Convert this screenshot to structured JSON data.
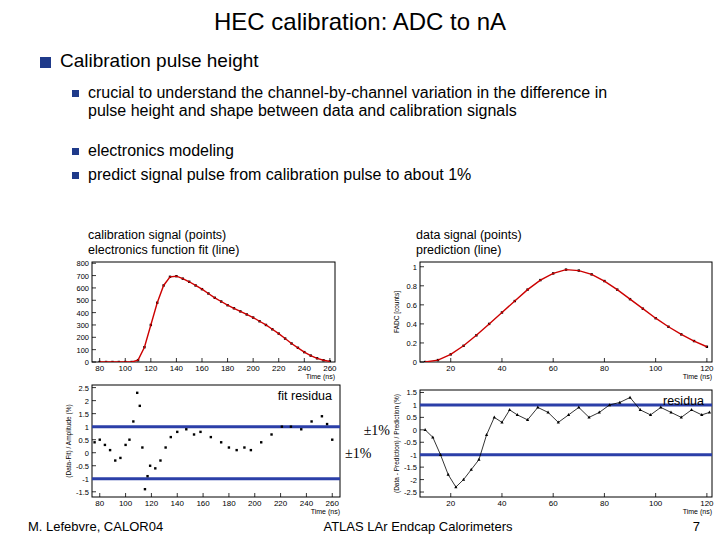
{
  "slide": {
    "title": "HEC calibration: ADC to nA",
    "bullet": "Calibration pulse height",
    "sub_bullets": [
      "crucial to understand the channel-by-channel variation in the difference in pulse height and shape between data and calibration signals",
      "electronics modeling",
      "predict signal pulse from calibration pulse to about 1%"
    ],
    "footer_left": "M. Lefebvre, CALOR04",
    "footer_center": "ATLAS LAr Endcap Calorimeters",
    "page_number": 7
  },
  "chart_data": [
    {
      "type": "line",
      "x_label": "Time (ns)",
      "legend": "top",
      "xlim": [
        74,
        264
      ],
      "xticks": [
        80,
        100,
        120,
        140,
        160,
        180,
        200,
        220,
        240,
        260
      ],
      "ylim": [
        0,
        810
      ],
      "yticks": [
        0,
        100,
        200,
        300,
        400,
        500,
        600,
        700,
        800
      ],
      "x": [
        80,
        85,
        90,
        95,
        100,
        105,
        110,
        115,
        120,
        125,
        130,
        135,
        140,
        145,
        150,
        155,
        160,
        165,
        170,
        175,
        180,
        185,
        190,
        195,
        200,
        205,
        210,
        215,
        220,
        225,
        230,
        235,
        240,
        245,
        250,
        255,
        260
      ],
      "series": [
        {
          "name": "calibration signal (points)",
          "type": "scatter",
          "marker": "square",
          "color": "#000000",
          "values": [
            0,
            0,
            0,
            0,
            0,
            0,
            15,
            120,
            300,
            480,
            620,
            690,
            695,
            675,
            650,
            620,
            590,
            555,
            520,
            490,
            460,
            435,
            410,
            385,
            360,
            330,
            300,
            265,
            230,
            190,
            150,
            115,
            80,
            52,
            30,
            14,
            5
          ]
        },
        {
          "name": "electronics function fit (line)",
          "type": "line",
          "color": "#cc0000",
          "values": [
            0,
            0,
            0,
            0,
            0,
            0,
            15,
            120,
            300,
            480,
            620,
            690,
            695,
            675,
            650,
            620,
            590,
            555,
            520,
            490,
            460,
            435,
            410,
            385,
            360,
            330,
            300,
            265,
            230,
            190,
            150,
            115,
            80,
            52,
            30,
            14,
            5
          ]
        }
      ]
    },
    {
      "type": "line",
      "x_label": "Time (ns)",
      "y_label": "FADC [counts]",
      "legend": "top",
      "xlim": [
        8,
        122
      ],
      "xticks": [
        20,
        40,
        60,
        80,
        100,
        120
      ],
      "ylim": [
        0,
        1.05
      ],
      "yticks": [
        0,
        0.2,
        0.4,
        0.6,
        0.8,
        1
      ],
      "x": [
        10,
        15,
        20,
        25,
        30,
        35,
        40,
        45,
        50,
        55,
        60,
        65,
        70,
        75,
        80,
        85,
        90,
        95,
        100,
        105,
        110,
        115,
        120
      ],
      "series": [
        {
          "name": "data signal (points)",
          "type": "scatter",
          "marker": "square",
          "color": "#000000",
          "values": [
            0,
            0.02,
            0.08,
            0.17,
            0.28,
            0.4,
            0.52,
            0.64,
            0.76,
            0.86,
            0.93,
            0.97,
            0.96,
            0.92,
            0.85,
            0.76,
            0.66,
            0.56,
            0.46,
            0.37,
            0.29,
            0.22,
            0.16
          ]
        },
        {
          "name": "prediction (line)",
          "type": "line",
          "color": "#cc0000",
          "values": [
            0,
            0.02,
            0.08,
            0.17,
            0.28,
            0.4,
            0.52,
            0.64,
            0.76,
            0.86,
            0.93,
            0.97,
            0.96,
            0.92,
            0.85,
            0.76,
            0.66,
            0.56,
            0.46,
            0.37,
            0.29,
            0.22,
            0.16
          ]
        }
      ]
    },
    {
      "type": "scatter",
      "x_label": "Time (ns)",
      "y_label": "(Data-Fit) / Amplitude (%)",
      "legend": "top right",
      "xlim": [
        74,
        266
      ],
      "xticks": [
        80,
        100,
        120,
        140,
        160,
        180,
        200,
        220,
        240,
        260
      ],
      "ylim": [
        -1.7,
        2.6
      ],
      "yticks": [
        -1.5,
        -1,
        -0.5,
        0,
        0.5,
        1,
        1.5,
        2,
        2.5
      ],
      "hlines": [
        1,
        -1
      ],
      "hline_color": "#2b3fa8",
      "annotations": [
        "±1%"
      ],
      "x": [
        76,
        80,
        84,
        88,
        92,
        96,
        100,
        103,
        106,
        109,
        111,
        113,
        115,
        117,
        119,
        123,
        127,
        131,
        135,
        140,
        147,
        153,
        158,
        166,
        174,
        180,
        186,
        192,
        197,
        205,
        213,
        221,
        228,
        236,
        244,
        252,
        256,
        260
      ],
      "series": [
        {
          "name": "fit residua",
          "marker": "square",
          "color": "#000000",
          "values": [
            0.4,
            0.5,
            0.3,
            0.1,
            -0.3,
            -0.2,
            0.3,
            0.5,
            1.2,
            2.3,
            1.8,
            0.2,
            -1.4,
            -0.9,
            -0.5,
            -0.6,
            -0.3,
            0.2,
            0.6,
            0.8,
            0.9,
            0.7,
            0.8,
            0.6,
            0.4,
            0.2,
            0.1,
            0.2,
            0.1,
            0.4,
            0.7,
            1.0,
            1.0,
            0.9,
            1.2,
            1.4,
            1.1,
            0.5
          ]
        }
      ]
    },
    {
      "type": "line",
      "x_label": "Time (ns)",
      "y_label": "(Data - Prediction) / Prediction (%)",
      "legend": "top right",
      "xlim": [
        8,
        122
      ],
      "xticks": [
        20,
        40,
        60,
        80,
        100,
        120
      ],
      "ylim": [
        -2.7,
        1.6
      ],
      "yticks": [
        -2.5,
        -2,
        -1.5,
        -1,
        -0.5,
        0,
        0.5,
        1,
        1.5
      ],
      "hlines": [
        1,
        -1
      ],
      "hline_color": "#2b3fa8",
      "annotations": [
        "±1%"
      ],
      "x": [
        10,
        13,
        16,
        19,
        22,
        25,
        28,
        31,
        34,
        37,
        40,
        43,
        46,
        50,
        54,
        58,
        62,
        66,
        70,
        74,
        78,
        82,
        86,
        90,
        94,
        98,
        102,
        106,
        110,
        114,
        118,
        121
      ],
      "series": [
        {
          "name": "residua",
          "marker": "triangle",
          "color": "#000000",
          "values": [
            0.0,
            -0.3,
            -1.0,
            -1.8,
            -2.3,
            -2.0,
            -1.6,
            -1.2,
            -0.2,
            0.5,
            0.3,
            0.8,
            0.6,
            0.4,
            0.9,
            0.7,
            0.3,
            0.6,
            0.9,
            0.5,
            0.7,
            1.0,
            1.1,
            1.3,
            0.8,
            0.6,
            0.9,
            0.7,
            0.5,
            0.8,
            0.6,
            0.7
          ]
        }
      ]
    }
  ]
}
